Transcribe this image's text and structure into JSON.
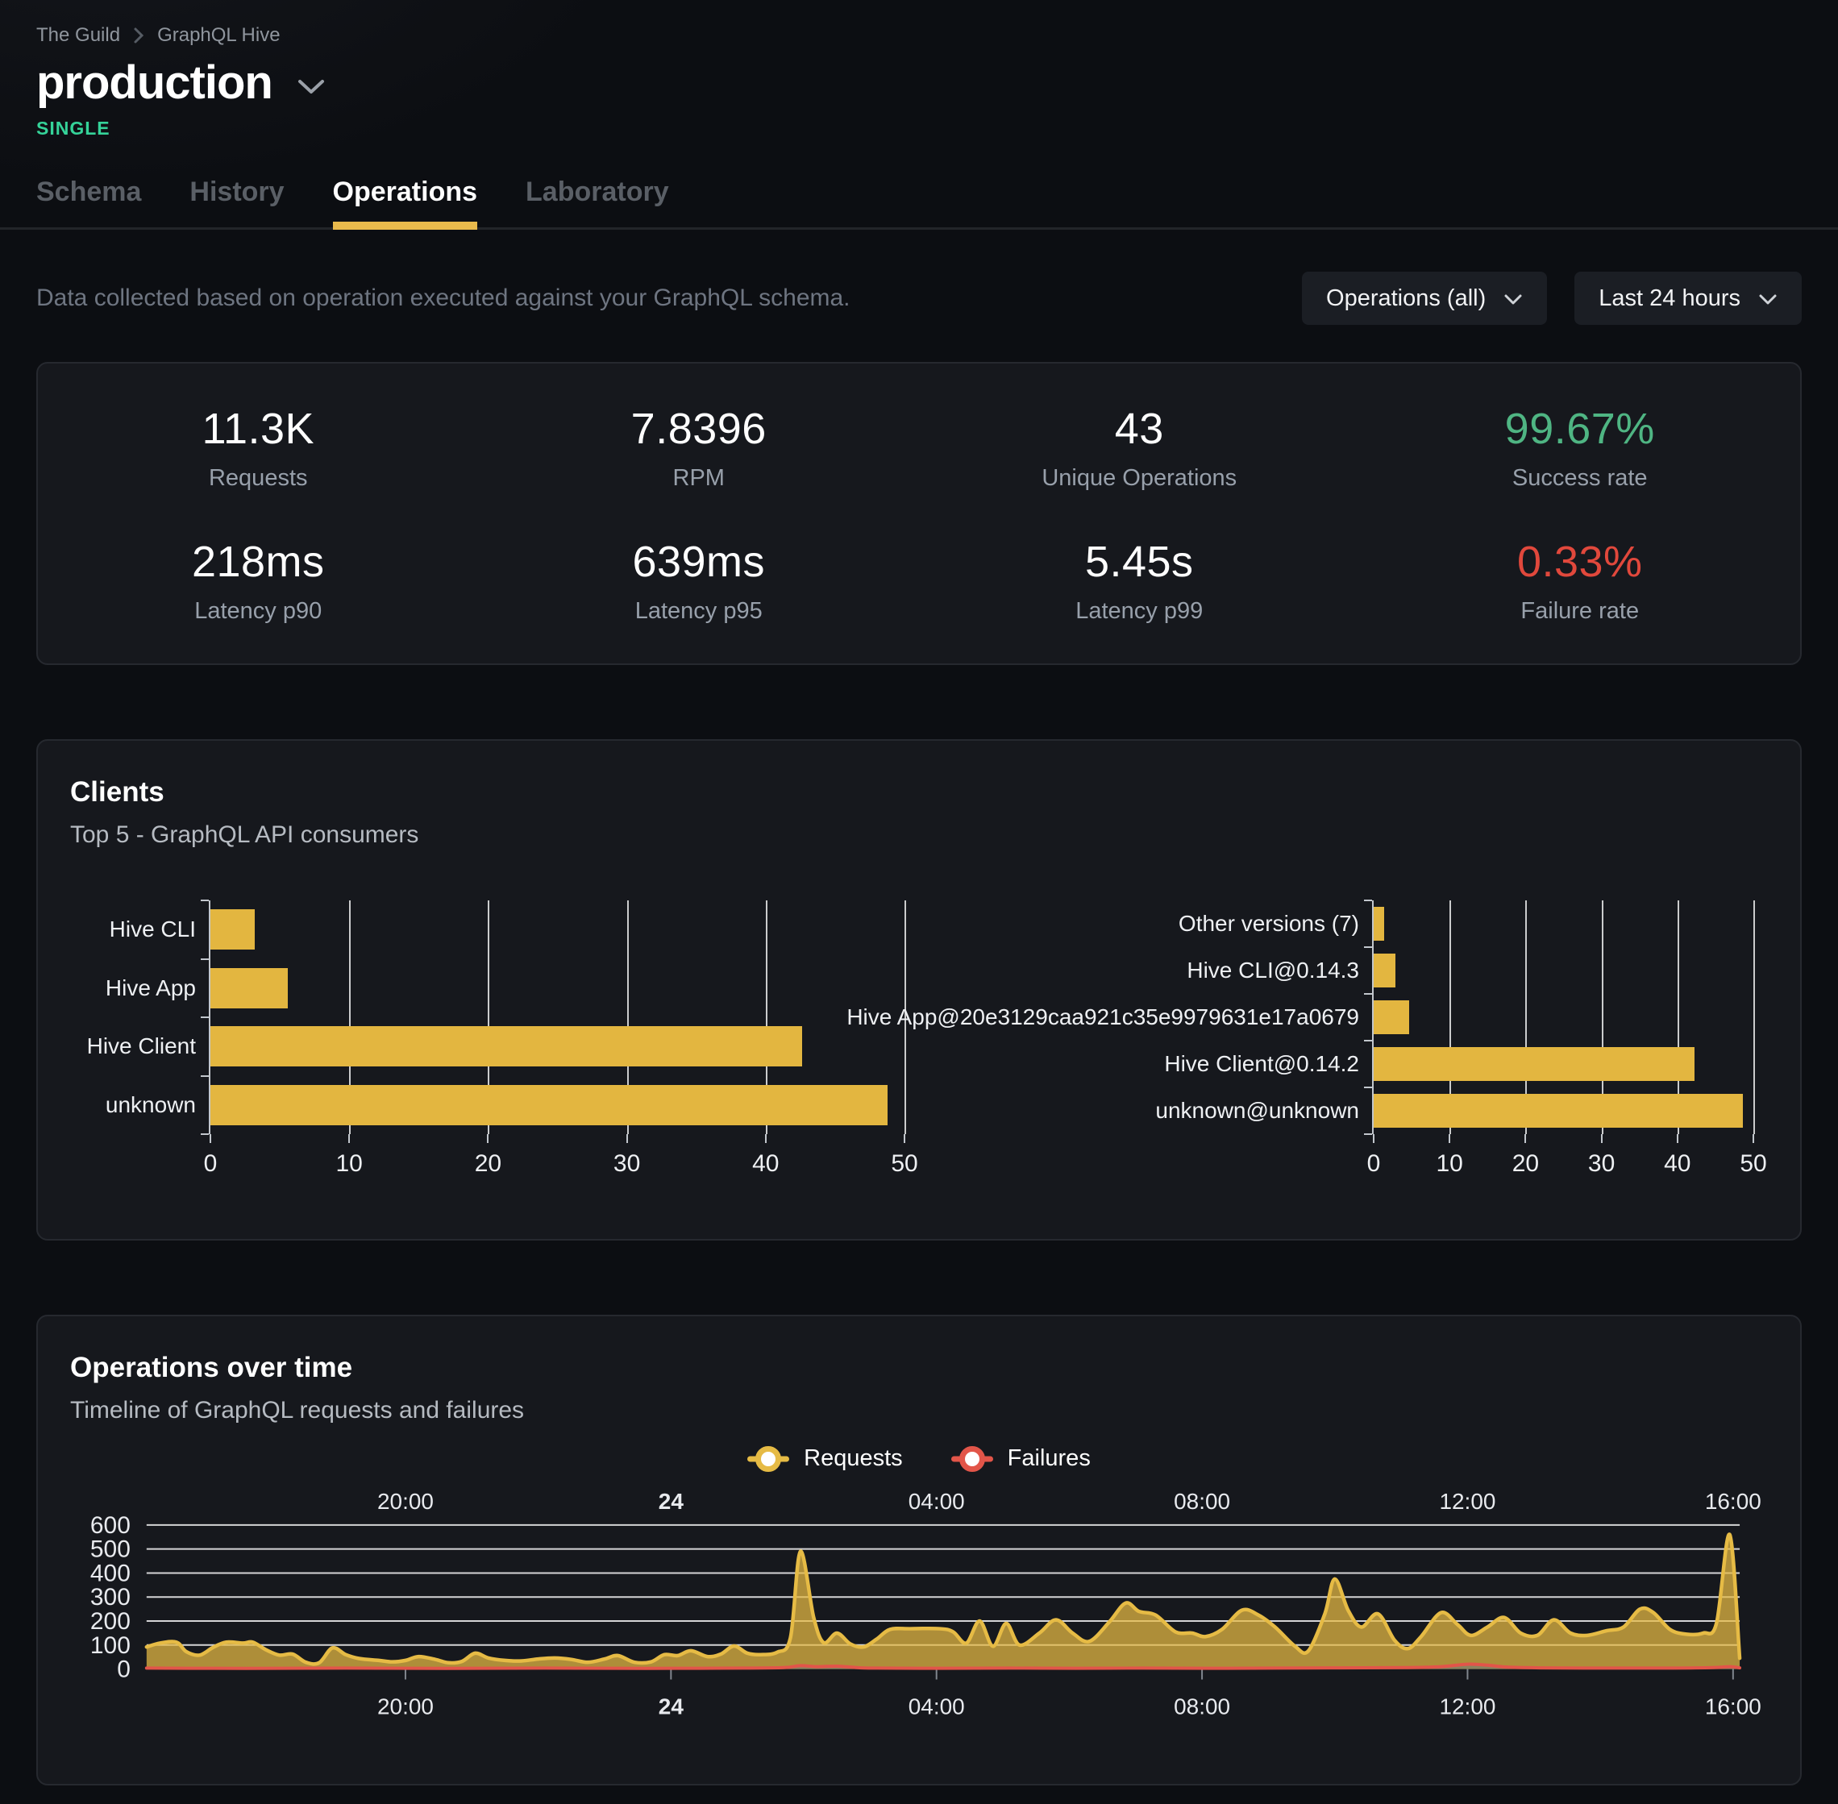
{
  "colors": {
    "page_bg": "#0c0e12",
    "panel_bg": "#16181d",
    "accent_yellow": "#e9ba4c",
    "bar_yellow": "#e3b640",
    "requests_line": "#e6bb45",
    "failures_red": "#e25549",
    "badge_green": "#35d399",
    "success_green": "#4fb583",
    "failure_rate_red": "#e1483c"
  },
  "breadcrumb": {
    "org": "The Guild",
    "project": "GraphQL Hive"
  },
  "project_header": {
    "title": "production",
    "badge": "SINGLE"
  },
  "tabs": [
    {
      "label": "Schema"
    },
    {
      "label": "History"
    },
    {
      "label": "Operations"
    },
    {
      "label": "Laboratory"
    }
  ],
  "active_tab": "Operations",
  "filter_bar": {
    "description": "Data collected based on operation executed against your GraphQL schema.",
    "operations_filter_label": "Operations (all)",
    "date_range_filter_label": "Last 24 hours"
  },
  "stats": [
    {
      "value": "11.3K",
      "label": "Requests"
    },
    {
      "value": "7.8396",
      "label": "RPM"
    },
    {
      "value": "43",
      "label": "Unique Operations"
    },
    {
      "value": "99.67%",
      "label": "Success rate",
      "value_color": "#4fb583"
    },
    {
      "value": "218ms",
      "label": "Latency p90"
    },
    {
      "value": "639ms",
      "label": "Latency p95"
    },
    {
      "value": "5.45s",
      "label": "Latency p99"
    },
    {
      "value": "0.33%",
      "label": "Failure rate",
      "value_color": "#e1483c"
    }
  ],
  "clients_panel": {
    "title": "Clients",
    "subtitle": "Top 5 - GraphQL API consumers"
  },
  "operations_over_time": {
    "title": "Operations over time",
    "subtitle": "Timeline of GraphQL requests and failures",
    "legend": [
      {
        "label": "Requests",
        "color": "#e6bb45"
      },
      {
        "label": "Failures",
        "color": "#e25549"
      }
    ]
  },
  "chart_data": [
    {
      "id": "clients-top5-by-name",
      "type": "bar",
      "orientation": "horizontal",
      "categories": [
        "Hive CLI",
        "Hive App",
        "Hive Client",
        "unknown"
      ],
      "values": [
        3.2,
        5.6,
        42.6,
        48.8
      ],
      "xlim": [
        0,
        50
      ],
      "xticks": [
        0,
        10,
        20,
        30,
        40,
        50
      ],
      "bar_color": "#e3b640",
      "grid": true
    },
    {
      "id": "clients-top5-by-version",
      "type": "bar",
      "orientation": "horizontal",
      "categories": [
        "Other versions (7)",
        "Hive CLI@0.14.3",
        "Hive App@20e3129caa921c35e9979631e17a0679",
        "Hive Client@0.14.2",
        "unknown@unknown"
      ],
      "values": [
        1.4,
        2.9,
        4.7,
        42.2,
        48.6
      ],
      "xlim": [
        0,
        50
      ],
      "xticks": [
        0,
        10,
        20,
        30,
        40,
        50
      ],
      "bar_color": "#e3b640",
      "grid": true
    },
    {
      "id": "operations-timeline",
      "type": "area",
      "x_hours_span": 24,
      "x_ticks": [
        {
          "label": "20:00",
          "h": 3.9
        },
        {
          "label": "24",
          "h": 7.9,
          "bold": true
        },
        {
          "label": "04:00",
          "h": 11.9
        },
        {
          "label": "08:00",
          "h": 15.9
        },
        {
          "label": "12:00",
          "h": 19.9
        },
        {
          "label": "16:00",
          "h": 23.9
        }
      ],
      "ylim": [
        0,
        600
      ],
      "yticks": [
        0,
        100,
        200,
        300,
        400,
        500,
        600
      ],
      "grid": true,
      "legend_position": "top-center",
      "series": [
        {
          "name": "Requests",
          "color": "#e6bb45",
          "points": [
            [
              0,
              92
            ],
            [
              0.2,
              108
            ],
            [
              0.45,
              112
            ],
            [
              0.6,
              72
            ],
            [
              0.8,
              58
            ],
            [
              1,
              90
            ],
            [
              1.2,
              112
            ],
            [
              1.45,
              108
            ],
            [
              1.6,
              112
            ],
            [
              1.8,
              80
            ],
            [
              2,
              58
            ],
            [
              2.2,
              62
            ],
            [
              2.4,
              28
            ],
            [
              2.6,
              26
            ],
            [
              2.8,
              88
            ],
            [
              3,
              60
            ],
            [
              3.2,
              44
            ],
            [
              3.5,
              36
            ],
            [
              3.7,
              30
            ],
            [
              3.9,
              36
            ],
            [
              4.1,
              52
            ],
            [
              4.35,
              40
            ],
            [
              4.55,
              26
            ],
            [
              4.75,
              32
            ],
            [
              4.95,
              66
            ],
            [
              5.15,
              46
            ],
            [
              5.4,
              36
            ],
            [
              5.65,
              34
            ],
            [
              5.9,
              42
            ],
            [
              6.15,
              46
            ],
            [
              6.4,
              40
            ],
            [
              6.65,
              28
            ],
            [
              6.9,
              42
            ],
            [
              7.1,
              56
            ],
            [
              7.35,
              28
            ],
            [
              7.6,
              30
            ],
            [
              7.8,
              60
            ],
            [
              8,
              56
            ],
            [
              8.2,
              76
            ],
            [
              8.45,
              52
            ],
            [
              8.65,
              62
            ],
            [
              8.85,
              96
            ],
            [
              9.05,
              66
            ],
            [
              9.25,
              60
            ],
            [
              9.5,
              70
            ],
            [
              9.7,
              130
            ],
            [
              9.85,
              490
            ],
            [
              10.05,
              215
            ],
            [
              10.2,
              110
            ],
            [
              10.4,
              150
            ],
            [
              10.6,
              105
            ],
            [
              10.8,
              92
            ],
            [
              11,
              125
            ],
            [
              11.2,
              165
            ],
            [
              11.5,
              168
            ],
            [
              11.95,
              168
            ],
            [
              12.15,
              155
            ],
            [
              12.35,
              108
            ],
            [
              12.55,
              200
            ],
            [
              12.75,
              95
            ],
            [
              12.95,
              190
            ],
            [
              13.15,
              100
            ],
            [
              13.45,
              150
            ],
            [
              13.7,
              205
            ],
            [
              13.95,
              150
            ],
            [
              14.2,
              115
            ],
            [
              14.5,
              195
            ],
            [
              14.75,
              275
            ],
            [
              14.95,
              240
            ],
            [
              15.2,
              225
            ],
            [
              15.5,
              155
            ],
            [
              15.75,
              150
            ],
            [
              15.95,
              135
            ],
            [
              16.2,
              165
            ],
            [
              16.5,
              245
            ],
            [
              16.75,
              225
            ],
            [
              17,
              175
            ],
            [
              17.3,
              95
            ],
            [
              17.5,
              75
            ],
            [
              17.75,
              230
            ],
            [
              17.9,
              375
            ],
            [
              18.1,
              245
            ],
            [
              18.3,
              175
            ],
            [
              18.55,
              230
            ],
            [
              18.8,
              120
            ],
            [
              19,
              85
            ],
            [
              19.2,
              135
            ],
            [
              19.5,
              235
            ],
            [
              19.75,
              185
            ],
            [
              19.95,
              140
            ],
            [
              20.2,
              175
            ],
            [
              20.45,
              215
            ],
            [
              20.7,
              150
            ],
            [
              20.95,
              140
            ],
            [
              21.2,
              205
            ],
            [
              21.45,
              150
            ],
            [
              21.7,
              140
            ],
            [
              22,
              160
            ],
            [
              22.25,
              175
            ],
            [
              22.5,
              250
            ],
            [
              22.7,
              235
            ],
            [
              22.95,
              165
            ],
            [
              23.2,
              145
            ],
            [
              23.45,
              150
            ],
            [
              23.65,
              190
            ],
            [
              23.85,
              560
            ],
            [
              24,
              45
            ]
          ]
        },
        {
          "name": "Failures",
          "color": "#e25549",
          "points": [
            [
              0,
              4
            ],
            [
              1,
              3
            ],
            [
              2,
              3
            ],
            [
              3,
              4
            ],
            [
              4,
              3
            ],
            [
              5,
              3
            ],
            [
              6,
              4
            ],
            [
              7,
              3
            ],
            [
              8,
              3
            ],
            [
              9,
              4
            ],
            [
              9.6,
              6
            ],
            [
              9.85,
              14
            ],
            [
              10.1,
              10
            ],
            [
              10.4,
              12
            ],
            [
              10.7,
              6
            ],
            [
              11,
              4
            ],
            [
              12,
              3
            ],
            [
              13,
              4
            ],
            [
              14,
              3
            ],
            [
              15,
              4
            ],
            [
              16,
              3
            ],
            [
              17,
              4
            ],
            [
              18,
              5
            ],
            [
              19,
              6
            ],
            [
              19.5,
              10
            ],
            [
              19.9,
              20
            ],
            [
              20.2,
              16
            ],
            [
              20.5,
              8
            ],
            [
              21,
              5
            ],
            [
              22,
              4
            ],
            [
              23,
              4
            ],
            [
              23.6,
              6
            ],
            [
              23.85,
              10
            ],
            [
              24,
              5
            ]
          ]
        }
      ]
    }
  ]
}
